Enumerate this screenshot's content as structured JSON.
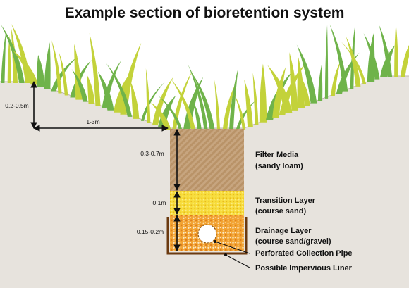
{
  "title": "Example section of bioretention system",
  "dimensions": {
    "batter_height": "0.2-0.5m",
    "batter_width": "1-3m",
    "filter_depth": "0.3-0.7m",
    "transition_depth": "0.1m",
    "drainage_depth": "0.15-0.2m"
  },
  "layers": {
    "filter": {
      "name": "Filter Media",
      "detail": "(sandy loam)"
    },
    "transition": {
      "name": "Transition Layer",
      "detail": "(course sand)"
    },
    "drainage": {
      "name": "Drainage Layer",
      "detail": "(course sand/gravel)"
    }
  },
  "callouts": {
    "pipe": "Perforated Collection Pipe",
    "liner": "Possible Impervious Liner"
  },
  "colors": {
    "ground": "#e7e3dd",
    "filter": "#c7a57f",
    "transition": "#f7dd3c",
    "drainage": "#f2a332",
    "liner": "#6b3a10",
    "grass_light": "#c3d23a",
    "grass_dark": "#6fb34a"
  }
}
